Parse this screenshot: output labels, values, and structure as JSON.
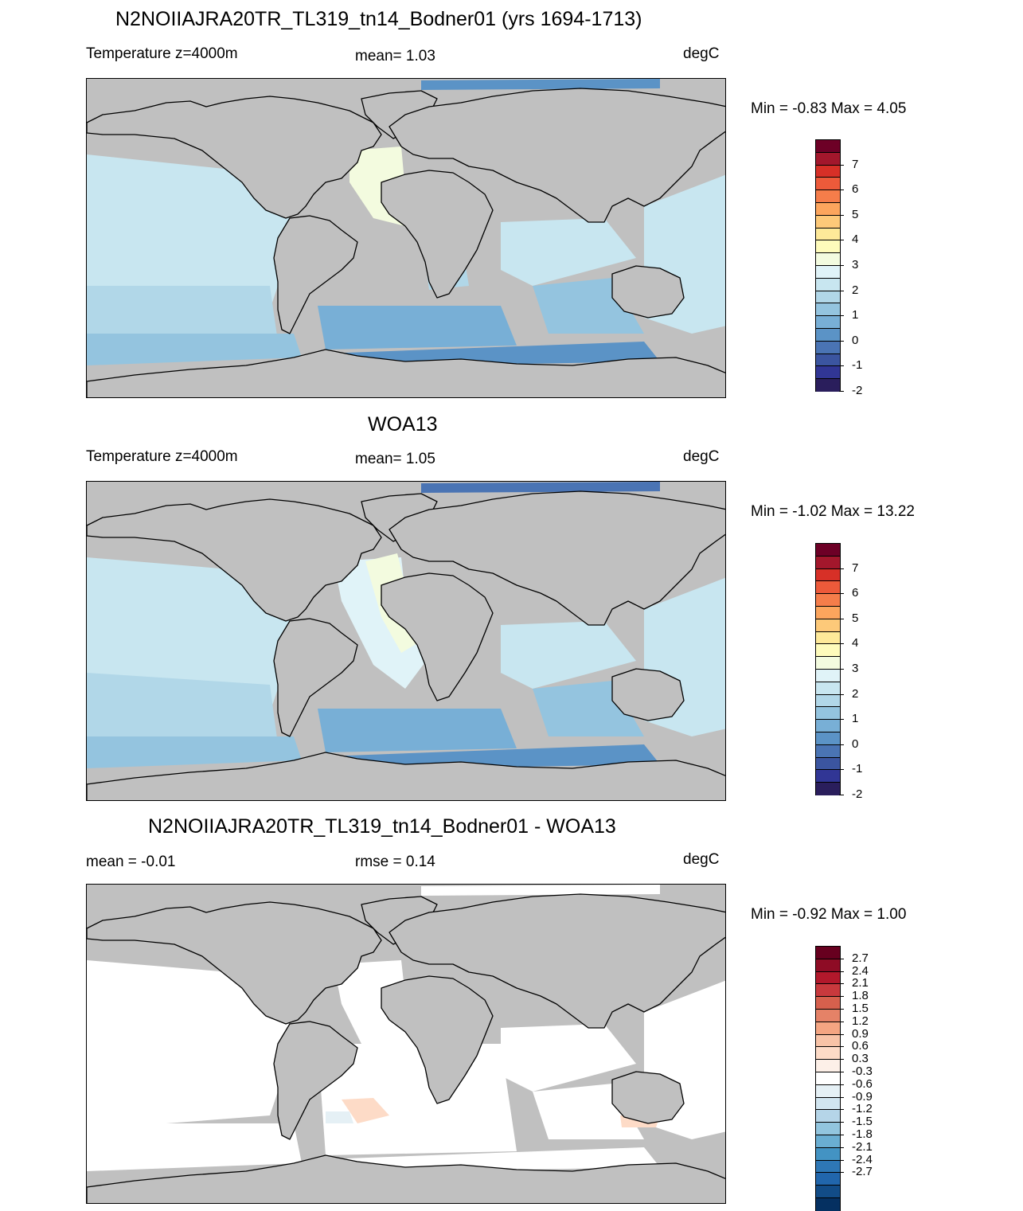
{
  "panels": [
    {
      "title": "N2NOIIAJRA20TR_TL319_tn14_Bodner01 (yrs 1694-1713)",
      "left_label": "Temperature z=4000m",
      "center_label": "mean=   1.03",
      "units": "degC",
      "minmax": "Min =  -0.83 Max =   4.05",
      "colorbar": {
        "colors": [
          "#6d0026",
          "#a3172c",
          "#d73027",
          "#ed5a3a",
          "#f57d4a",
          "#fca55d",
          "#fdc979",
          "#fee999",
          "#fefbbb",
          "#f3fbdf",
          "#e0f3f8",
          "#c8e6f0",
          "#b1d7e8",
          "#94c4df",
          "#78afd6",
          "#5b93c6",
          "#4a74b4",
          "#3b55a0",
          "#313695",
          "#2a1e5c"
        ],
        "labels": [
          "7",
          "6",
          "5",
          "4",
          "3",
          "2",
          "1",
          "0",
          "-1",
          "-2"
        ]
      }
    },
    {
      "title": "WOA13",
      "left_label": "Temperature z=4000m",
      "center_label": "mean=   1.05",
      "units": "degC",
      "minmax": "Min =  -1.02 Max =  13.22",
      "colorbar": {
        "colors": [
          "#6d0026",
          "#a3172c",
          "#d73027",
          "#ed5a3a",
          "#f57d4a",
          "#fca55d",
          "#fdc979",
          "#fee999",
          "#fefbbb",
          "#f3fbdf",
          "#e0f3f8",
          "#c8e6f0",
          "#b1d7e8",
          "#94c4df",
          "#78afd6",
          "#5b93c6",
          "#4a74b4",
          "#3b55a0",
          "#313695",
          "#2a1e5c"
        ],
        "labels": [
          "7",
          "6",
          "5",
          "4",
          "3",
          "2",
          "1",
          "0",
          "-1",
          "-2"
        ]
      }
    },
    {
      "title": "N2NOIIAJRA20TR_TL319_tn14_Bodner01 - WOA13",
      "left_label": "mean =  -0.01",
      "center_label": "rmse =   0.14",
      "units": "degC",
      "minmax": "Min =  -0.92 Max =   1.00",
      "colorbar": {
        "colors": [
          "#67001f",
          "#8e0c25",
          "#b2182b",
          "#c8393d",
          "#d6604d",
          "#e58267",
          "#f4a582",
          "#f8c3a7",
          "#fddbc7",
          "#fdf0e8",
          "#ffffff",
          "#e5f0f5",
          "#d1e5f0",
          "#b5d5e8",
          "#92c5de",
          "#6aaed2",
          "#4393c3",
          "#2e77b5",
          "#2166ac",
          "#124c87",
          "#053061"
        ],
        "labels": [
          "2.7",
          "2.4",
          "2.1",
          "1.8",
          "1.5",
          "1.2",
          "0.9",
          "0.6",
          "0.3",
          "-0.3",
          "-0.6",
          "-0.9",
          "-1.2",
          "-1.5",
          "-1.8",
          "-2.1",
          "-2.4",
          "-2.7"
        ]
      }
    }
  ],
  "colors": {
    "land": "#c0c0c0",
    "coast": "#000000"
  }
}
